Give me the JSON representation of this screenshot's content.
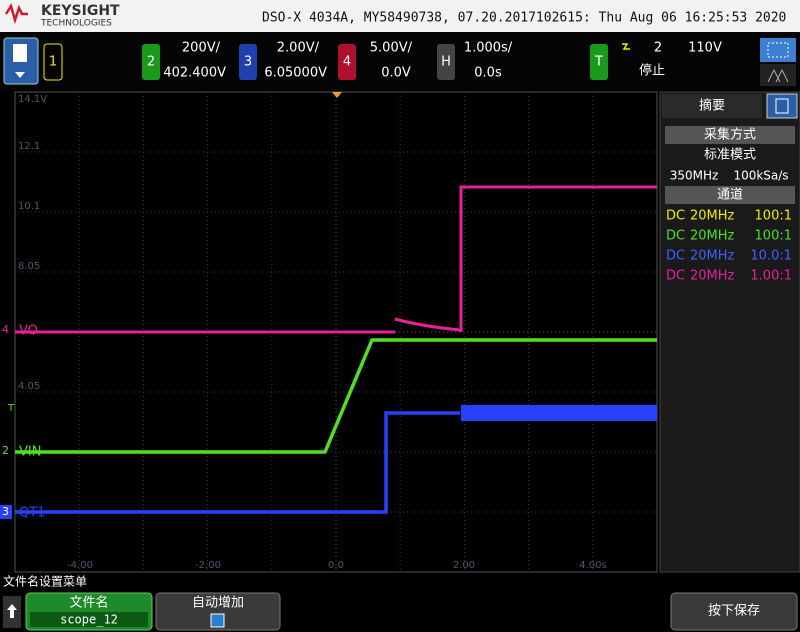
{
  "header": {
    "brand": "KEYSIGHT",
    "brand_sub": "TECHNOLOGIES",
    "title": "DSO-X 4034A, MY58490738, 07.20.2017102615: Thu Aug 06 16:25:53 2020"
  },
  "toolbar": {
    "channels": [
      {
        "number": "1"
      },
      {
        "number": "2",
        "scale": "200V/",
        "offset": "402.400V"
      },
      {
        "number": "3",
        "scale": "2.00V/",
        "offset": "6.05000V"
      },
      {
        "number": "4",
        "scale": "5.00V/",
        "offset": "0.0V"
      }
    ],
    "horizontal": {
      "label": "H",
      "scale": "1.000s/",
      "delay": "0.0s"
    },
    "trigger": {
      "label": "T",
      "source": "2",
      "level": "110V",
      "status": "停止"
    }
  },
  "display": {
    "y_labels": [
      "14.1V",
      "12.1",
      "10.1",
      "8.05",
      "4.05"
    ],
    "x_labels": [
      "-4.00",
      "-2.00",
      "0.0",
      "2.00",
      "4.00s"
    ],
    "traces": [
      {
        "marker": "4",
        "name": "VO"
      },
      {
        "marker": "2",
        "name": "VIN"
      },
      {
        "marker": "3",
        "name": "QT1"
      }
    ],
    "trigger_marker": "T"
  },
  "panel": {
    "tab": "摘要",
    "acquisition_heading": "采集方式",
    "mode": "标准模式",
    "bandwidth": "350MHz",
    "sample_rate": "100kSa/s",
    "channels_heading": "通道",
    "channels": [
      {
        "coupling": "DC",
        "bw_limit": "20MHz",
        "probe": "100:1"
      },
      {
        "coupling": "DC",
        "bw_limit": "20MHz",
        "probe": "100:1"
      },
      {
        "coupling": "DC",
        "bw_limit": "20MHz",
        "probe": "10.0:1"
      },
      {
        "coupling": "DC",
        "bw_limit": "20MHz",
        "probe": "1.00:1"
      }
    ]
  },
  "softkeys": {
    "menu_title": "文件名设置菜单",
    "keys": [
      {
        "label": "文件名",
        "value": "scope_12"
      },
      {
        "label": "自动增加"
      },
      {
        "label": "按下保存"
      }
    ]
  }
}
